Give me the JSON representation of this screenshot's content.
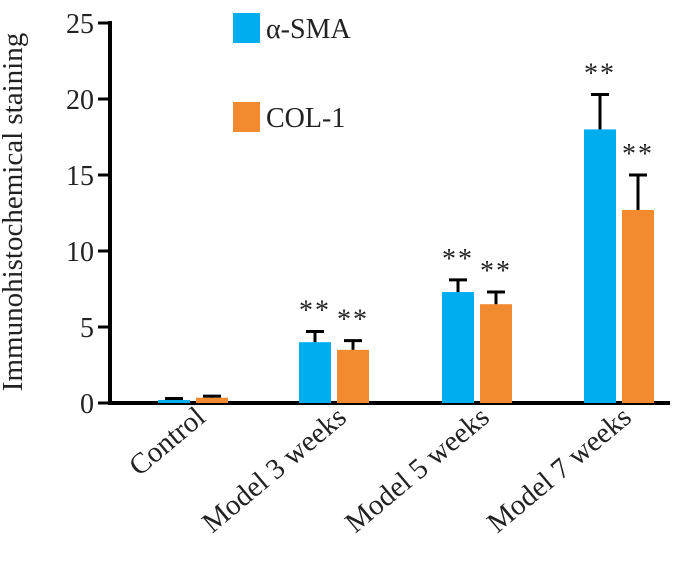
{
  "chart_data": {
    "type": "bar",
    "ylabel": "Immunohistochemical staining",
    "xlabel": "",
    "ylim": [
      0,
      25
    ],
    "yticks": [
      0,
      5,
      10,
      15,
      20,
      25
    ],
    "categories": [
      "Control",
      "Model 3 weeks",
      "Model 5 weeks",
      "Model 7 weeks"
    ],
    "series": [
      {
        "name": "α-SMA",
        "color": "#00AEEF",
        "values": [
          0.2,
          4.0,
          7.3,
          18.0
        ],
        "errors": [
          0.1,
          0.7,
          0.8,
          2.3
        ],
        "annotations": [
          "",
          "**",
          "**",
          "**"
        ]
      },
      {
        "name": "COL-1",
        "color": "#F28A30",
        "values": [
          0.35,
          3.5,
          6.5,
          12.7
        ],
        "errors": [
          0.1,
          0.6,
          0.8,
          2.3
        ],
        "annotations": [
          "",
          "**",
          "**",
          "**"
        ]
      }
    ],
    "legend_position": "top-center",
    "grid": false
  }
}
